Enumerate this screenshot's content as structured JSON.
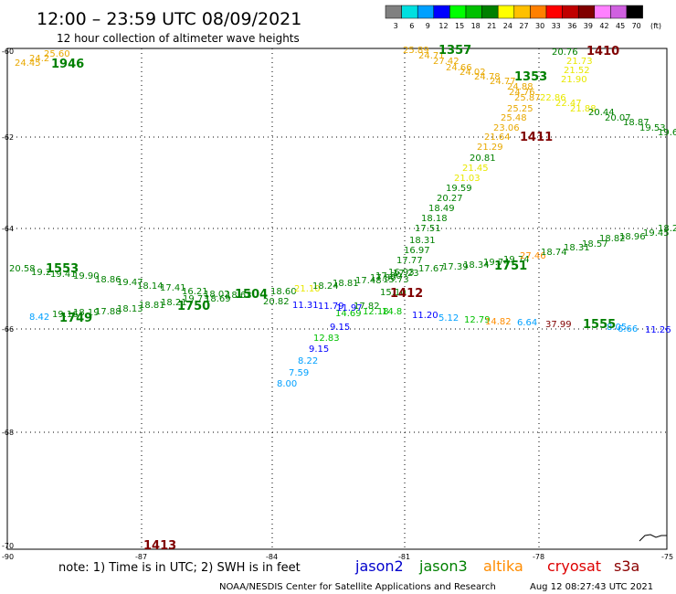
{
  "header": {
    "title": "12:00 – 23:59 UTC 08/09/2021",
    "subtitle": "12 hour collection of altimeter wave heights"
  },
  "color_scale": {
    "labels": [
      "3",
      "6",
      "9",
      "12",
      "15",
      "18",
      "21",
      "24",
      "27",
      "30",
      "33",
      "36",
      "39",
      "42",
      "45",
      "70"
    ],
    "unit": "(ft)",
    "colors": [
      "#808080",
      "#00e0e0",
      "#00a0ff",
      "#0000ff",
      "#00ff00",
      "#00c000",
      "#008000",
      "#ffff00",
      "#ffc000",
      "#ff8000",
      "#ff0000",
      "#c00000",
      "#800000",
      "#ff80ff",
      "#d060e0",
      "#000000"
    ]
  },
  "axes": {
    "lat_ticks": [
      "-60",
      "-62",
      "-64",
      "-66",
      "-68",
      "-70"
    ],
    "lon_ticks": [
      "-90",
      "-87",
      "-84",
      "-81",
      "-78",
      "-75"
    ]
  },
  "satellites": [
    {
      "name": "jason2",
      "color": "#0000cc"
    },
    {
      "name": "jason3",
      "color": "#008000"
    },
    {
      "name": "altika",
      "color": "#ff8c00"
    },
    {
      "name": "cryosat",
      "color": "#dd0000"
    },
    {
      "name": "s3a",
      "color": "#8b0000"
    }
  ],
  "footer": {
    "note": "note: 1) Time is in UTC; 2) SWH is in feet",
    "credit": "NOAA/NESDIS Center for Satellite Applications and Research",
    "timestamp": "Aug 12 08:27:43 UTC 2021"
  },
  "passes": [
    {
      "label": "1946",
      "color": "#008000"
    },
    {
      "label": "1357",
      "color": "#008000"
    },
    {
      "label": "1410",
      "color": "#800000"
    },
    {
      "label": "1353",
      "color": "#008000"
    },
    {
      "label": "1411",
      "color": "#800000"
    },
    {
      "label": "1553",
      "color": "#008000"
    },
    {
      "label": "1504",
      "color": "#008000"
    },
    {
      "label": "1751",
      "color": "#008000"
    },
    {
      "label": "1412",
      "color": "#800000"
    },
    {
      "label": "1749",
      "color": "#008000"
    },
    {
      "label": "1750",
      "color": "#008000"
    },
    {
      "label": "1555",
      "color": "#008000"
    },
    {
      "label": "1413",
      "color": "#800000"
    }
  ],
  "values": [
    {
      "t": "24.45",
      "c": "#e8a800"
    },
    {
      "t": "24.2",
      "c": "#e8a800"
    },
    {
      "t": "25.60",
      "c": "#e8a800"
    },
    {
      "t": "25.89",
      "c": "#e8a800"
    },
    {
      "t": "24.71",
      "c": "#e8a800"
    },
    {
      "t": "27.42",
      "c": "#e8a800"
    },
    {
      "t": "24.66",
      "c": "#e8a800"
    },
    {
      "t": "24.02",
      "c": "#e8a800"
    },
    {
      "t": "24.78",
      "c": "#e8a800"
    },
    {
      "t": "24.77",
      "c": "#e8a800"
    },
    {
      "t": "24.88",
      "c": "#e8a800"
    },
    {
      "t": "24.76",
      "c": "#e8a800"
    },
    {
      "t": "25.87",
      "c": "#e8a800"
    },
    {
      "t": "25.25",
      "c": "#e8a800"
    },
    {
      "t": "25.48",
      "c": "#e8a800"
    },
    {
      "t": "23.06",
      "c": "#e8a800"
    },
    {
      "t": "21.64",
      "c": "#e8a800"
    },
    {
      "t": "21.29",
      "c": "#e8a800"
    },
    {
      "t": "20.81",
      "c": "#008000"
    },
    {
      "t": "21.45",
      "c": "#e8e800"
    },
    {
      "t": "21.03",
      "c": "#e8e800"
    },
    {
      "t": "19.59",
      "c": "#008000"
    },
    {
      "t": "20.27",
      "c": "#008000"
    },
    {
      "t": "18.49",
      "c": "#008000"
    },
    {
      "t": "18.18",
      "c": "#008000"
    },
    {
      "t": "17.51",
      "c": "#008000"
    },
    {
      "t": "18.31",
      "c": "#008000"
    },
    {
      "t": "16.97",
      "c": "#008000"
    },
    {
      "t": "17.77",
      "c": "#008000"
    },
    {
      "t": "16.93",
      "c": "#008000"
    },
    {
      "t": "15.73",
      "c": "#008000"
    },
    {
      "t": "15.10",
      "c": "#008000"
    },
    {
      "t": "14.69",
      "c": "#00c000"
    },
    {
      "t": "12.83",
      "c": "#00c000"
    },
    {
      "t": "9.15",
      "c": "#0000ff"
    },
    {
      "t": "9.15",
      "c": "#0000ff"
    },
    {
      "t": "8.22",
      "c": "#00a0ff"
    },
    {
      "t": "7.59",
      "c": "#00a0ff"
    },
    {
      "t": "8.00",
      "c": "#00a0ff"
    },
    {
      "t": "20.76",
      "c": "#008000"
    },
    {
      "t": "21.73",
      "c": "#e8e800"
    },
    {
      "t": "21.52",
      "c": "#e8e800"
    },
    {
      "t": "21.90",
      "c": "#e8e800"
    },
    {
      "t": "22.86",
      "c": "#e8e800"
    },
    {
      "t": "22.47",
      "c": "#e8e800"
    },
    {
      "t": "21.88",
      "c": "#e8e800"
    },
    {
      "t": "20.44",
      "c": "#008000"
    },
    {
      "t": "20.07",
      "c": "#008000"
    },
    {
      "t": "18.87",
      "c": "#008000"
    },
    {
      "t": "19.53",
      "c": "#008000"
    },
    {
      "t": "19.6",
      "c": "#008000"
    },
    {
      "t": "20.58",
      "c": "#008000"
    },
    {
      "t": "19.2",
      "c": "#008000"
    },
    {
      "t": "19.41",
      "c": "#008000"
    },
    {
      "t": "19.90",
      "c": "#008000"
    },
    {
      "t": "18.86",
      "c": "#008000"
    },
    {
      "t": "19.47",
      "c": "#008000"
    },
    {
      "t": "18.14",
      "c": "#008000"
    },
    {
      "t": "17.41",
      "c": "#008000"
    },
    {
      "t": "16.21",
      "c": "#008000"
    },
    {
      "t": "18.02",
      "c": "#008000"
    },
    {
      "t": "18.63",
      "c": "#008000"
    },
    {
      "t": "18.60",
      "c": "#008000"
    },
    {
      "t": "21.10",
      "c": "#e8e800"
    },
    {
      "t": "18.24",
      "c": "#008000"
    },
    {
      "t": "18.81",
      "c": "#008000"
    },
    {
      "t": "17.48",
      "c": "#008000"
    },
    {
      "t": "17.80",
      "c": "#008000"
    },
    {
      "t": "17.90",
      "c": "#008000"
    },
    {
      "t": "17.23",
      "c": "#008000"
    },
    {
      "t": "17.67",
      "c": "#008000"
    },
    {
      "t": "17.39",
      "c": "#008000"
    },
    {
      "t": "18.34",
      "c": "#008000"
    },
    {
      "t": "19.74",
      "c": "#008000"
    },
    {
      "t": "19.74",
      "c": "#008000"
    },
    {
      "t": "27.46",
      "c": "#ff8c00"
    },
    {
      "t": "18.74",
      "c": "#008000"
    },
    {
      "t": "18.31",
      "c": "#008000"
    },
    {
      "t": "18.57",
      "c": "#008000"
    },
    {
      "t": "18.82",
      "c": "#008000"
    },
    {
      "t": "18.96",
      "c": "#008000"
    },
    {
      "t": "19.45",
      "c": "#008000"
    },
    {
      "t": "18.2",
      "c": "#008000"
    },
    {
      "t": "8.42",
      "c": "#00a0ff"
    },
    {
      "t": "19.16",
      "c": "#008000"
    },
    {
      "t": "18.19",
      "c": "#008000"
    },
    {
      "t": "17.88",
      "c": "#008000"
    },
    {
      "t": "18.13",
      "c": "#008000"
    },
    {
      "t": "18.81",
      "c": "#008000"
    },
    {
      "t": "18.21",
      "c": "#008000"
    },
    {
      "t": "19.73",
      "c": "#008000"
    },
    {
      "t": "18.69",
      "c": "#008000"
    },
    {
      "t": "20.82",
      "c": "#008000"
    },
    {
      "t": "11.31",
      "c": "#0000ff"
    },
    {
      "t": "11.79",
      "c": "#0000ff"
    },
    {
      "t": "11.97",
      "c": "#0000ff"
    },
    {
      "t": "17.82",
      "c": "#008000"
    },
    {
      "t": "12.18",
      "c": "#00c000"
    },
    {
      "t": "14.8",
      "c": "#00c000"
    },
    {
      "t": "11.20",
      "c": "#0000ff"
    },
    {
      "t": "5.12",
      "c": "#00a0ff"
    },
    {
      "t": "12.79",
      "c": "#00c000"
    },
    {
      "t": "14.82",
      "c": "#ff8c00"
    },
    {
      "t": "6.64",
      "c": "#00a0ff"
    },
    {
      "t": "37.99",
      "c": "#800000"
    },
    {
      "t": "8.05",
      "c": "#00a0ff"
    },
    {
      "t": "6.66",
      "c": "#00a0ff"
    },
    {
      "t": "11.26",
      "c": "#0000ff"
    }
  ]
}
